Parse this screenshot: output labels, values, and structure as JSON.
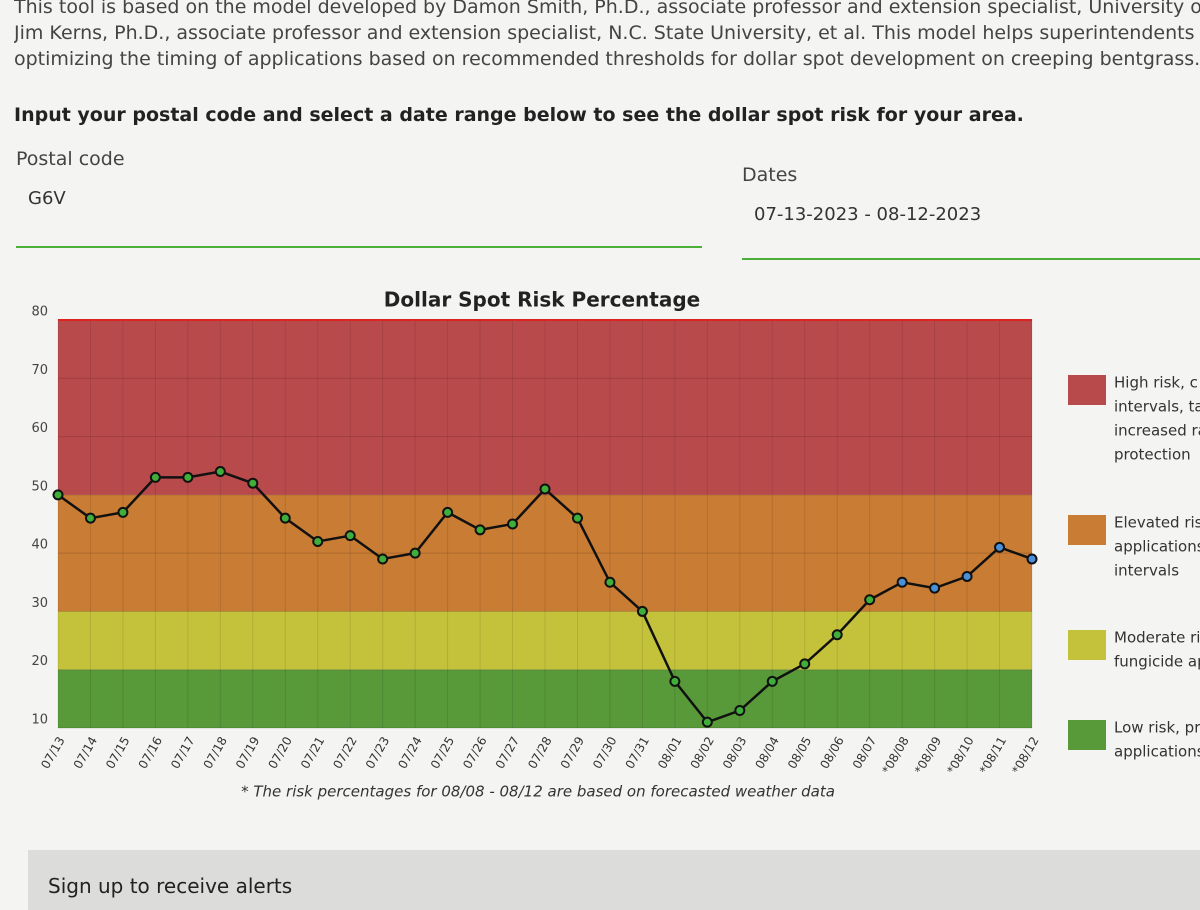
{
  "intro": {
    "lines": [
      "This tool is based on the model developed by Damon Smith, Ph.D., associate professor and extension specialist, University of Wisc",
      "Jim Kerns, Ph.D., associate professor and extension specialist, N.C. State University, et al. This model helps superintendents maxim",
      "optimizing the timing of applications based on recommended thresholds for dollar spot development on creeping bentgrass."
    ],
    "instruction": "Input your postal code and select a date range below to see the dollar spot risk for your area."
  },
  "form": {
    "postal_label": "Postal code",
    "postal_value": "G6V",
    "dates_label": "Dates",
    "dates_value": "07-13-2023 - 08-12-2023"
  },
  "chart_data": {
    "type": "line",
    "title": "Dollar Spot Risk Percentage",
    "categories": [
      "07/13",
      "07/14",
      "07/15",
      "07/16",
      "07/17",
      "07/18",
      "07/19",
      "07/20",
      "07/21",
      "07/22",
      "07/23",
      "07/24",
      "07/25",
      "07/26",
      "07/27",
      "07/28",
      "07/29",
      "07/30",
      "07/31",
      "08/01",
      "08/02",
      "08/03",
      "08/04",
      "08/05",
      "08/06",
      "08/07",
      "*08/08",
      "*08/09",
      "*08/10",
      "*08/11",
      "*08/12"
    ],
    "values": [
      50,
      46,
      47,
      53,
      53,
      54,
      52,
      46,
      42,
      43,
      39,
      40,
      47,
      44,
      45,
      51,
      46,
      35,
      30,
      18,
      11,
      13,
      18,
      21,
      26,
      32,
      35,
      34,
      36,
      41,
      39
    ],
    "line_color": "#111111",
    "marker_colors": [
      "#3fae3a",
      "#3fae3a",
      "#3fae3a",
      "#3fae3a",
      "#3fae3a",
      "#3fae3a",
      "#3fae3a",
      "#3fae3a",
      "#3fae3a",
      "#3fae3a",
      "#3fae3a",
      "#3fae3a",
      "#3fae3a",
      "#3fae3a",
      "#3fae3a",
      "#3fae3a",
      "#3fae3a",
      "#3fae3a",
      "#3fae3a",
      "#3fae3a",
      "#3fae3a",
      "#3fae3a",
      "#3fae3a",
      "#3fae3a",
      "#3fae3a",
      "#3fae3a",
      "#4a90d9",
      "#4a90d9",
      "#4a90d9",
      "#4a90d9",
      "#4a90d9"
    ],
    "ylim": [
      10,
      80
    ],
    "yticks": [
      10,
      20,
      30,
      40,
      50,
      60,
      70,
      80
    ],
    "grid": true,
    "bands": [
      {
        "from": 50,
        "to": 80,
        "color": "#b94a4c",
        "label_lines": [
          "High risk, c",
          "intervals, ta",
          "increased ra",
          "protection"
        ]
      },
      {
        "from": 30,
        "to": 50,
        "color": "#c97c34",
        "label_lines": [
          "Elevated risl",
          "applications",
          "intervals"
        ]
      },
      {
        "from": 20,
        "to": 30,
        "color": "#c4c23a",
        "label_lines": [
          "Moderate ris",
          "fungicide ap"
        ]
      },
      {
        "from": 10,
        "to": 20,
        "color": "#58993a",
        "label_lines": [
          "Low risk, pre",
          "applications"
        ]
      }
    ],
    "footnote": "* The risk percentages for 08/08 - 08/12 are based on forecasted weather data"
  },
  "signup": {
    "title": "Sign up to receive alerts"
  }
}
